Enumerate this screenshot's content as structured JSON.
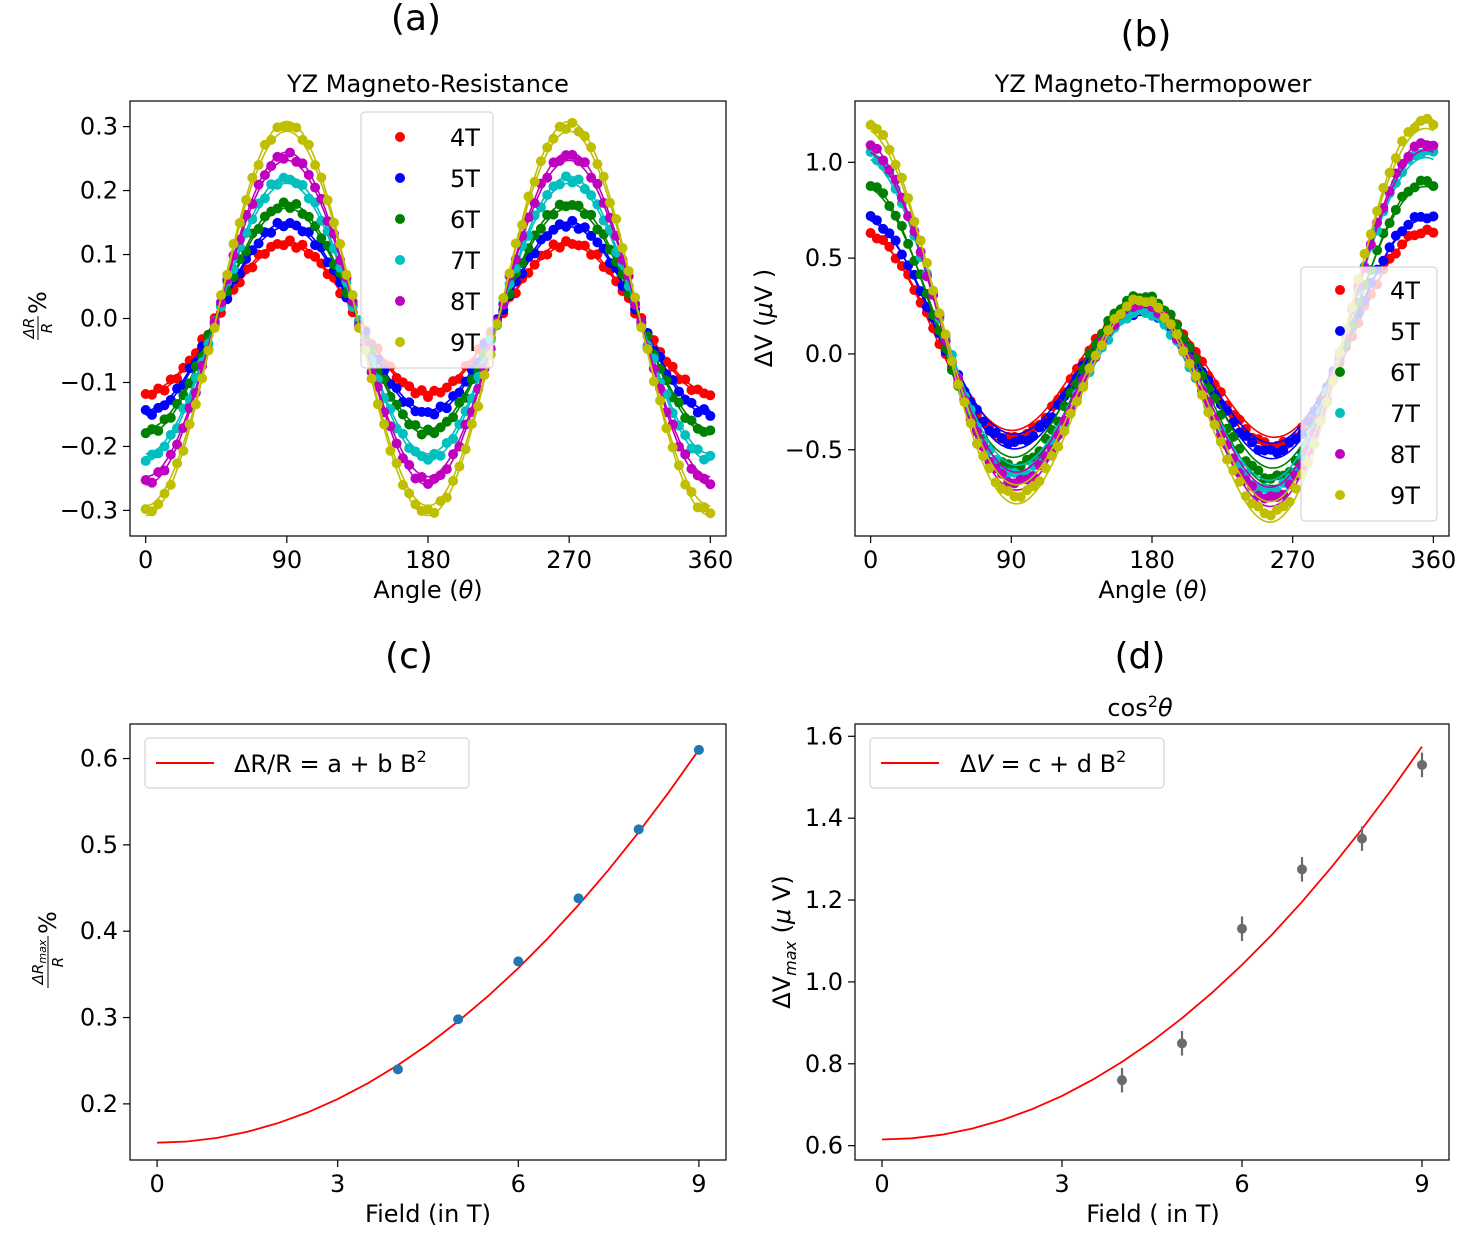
{
  "chart_data": [
    {
      "panel": "(a)",
      "type": "scatter",
      "title": "YZ Magneto-Resistance",
      "xlabel": "Angle (θ)",
      "ylabel": "ΔR/R %",
      "xlim": [
        -10,
        370
      ],
      "ylim": [
        -0.34,
        0.34
      ],
      "xticks": [
        0,
        90,
        180,
        270,
        360
      ],
      "xtick_labels": [
        "0",
        "90",
        "180",
        "270",
        "360"
      ],
      "yticks": [
        -0.3,
        -0.2,
        -0.1,
        0.0,
        0.1,
        0.2,
        0.3
      ],
      "ytick_labels": [
        "−0.3",
        "−0.2",
        "−0.1",
        "0.0",
        "0.1",
        "0.2",
        "0.3"
      ],
      "model": "-A·cos(2θ)",
      "legend_position": "top-center",
      "series": [
        {
          "name": "4T",
          "color": "#ff0000",
          "amplitude": 0.118
        },
        {
          "name": "5T",
          "color": "#0000ff",
          "amplitude": 0.148
        },
        {
          "name": "6T",
          "color": "#008000",
          "amplitude": 0.178
        },
        {
          "name": "7T",
          "color": "#00bfbf",
          "amplitude": 0.218
        },
        {
          "name": "8T",
          "color": "#bf00bf",
          "amplitude": 0.255
        },
        {
          "name": "9T",
          "color": "#bfbf00",
          "amplitude": 0.302
        }
      ]
    },
    {
      "panel": "(b)",
      "type": "scatter",
      "title": "YZ Magneto-Thermopower",
      "xlabel": "Angle (θ)",
      "ylabel": "ΔV (μV )",
      "xlim": [
        -10,
        370
      ],
      "ylim": [
        -0.95,
        1.32
      ],
      "xticks": [
        0,
        90,
        180,
        270,
        360
      ],
      "xtick_labels": [
        "0",
        "90",
        "180",
        "270",
        "360"
      ],
      "yticks": [
        -0.5,
        0.0,
        0.5,
        1.0
      ],
      "ytick_labels": [
        "−0.5",
        "0.0",
        "0.5",
        "1.0"
      ],
      "model": "c·cos(2θ+0.2) + s·cos(θ)",
      "legend_position": "center-right",
      "series": [
        {
          "name": "4T",
          "color": "#ff0000",
          "c": 0.45,
          "s": 0.19
        },
        {
          "name": "5T",
          "color": "#0000ff",
          "c": 0.47,
          "s": 0.25
        },
        {
          "name": "6T",
          "color": "#008000",
          "c": 0.6,
          "s": 0.3
        },
        {
          "name": "7T",
          "color": "#00bfbf",
          "c": 0.64,
          "s": 0.42
        },
        {
          "name": "8T",
          "color": "#bf00bf",
          "c": 0.68,
          "s": 0.42
        },
        {
          "name": "9T",
          "color": "#bfbf00",
          "c": 0.75,
          "s": 0.47
        }
      ]
    },
    {
      "panel": "(c)",
      "type": "scatter",
      "title": "",
      "xlabel": "Field (in T)",
      "ylabel": "ΔRmax/R %",
      "xlim": [
        -0.45,
        9.45
      ],
      "ylim": [
        0.135,
        0.64
      ],
      "xticks": [
        0,
        3,
        6,
        9
      ],
      "xtick_labels": [
        "0",
        "3",
        "6",
        "9"
      ],
      "yticks": [
        0.2,
        0.3,
        0.4,
        0.5,
        0.6
      ],
      "ytick_labels": [
        "0.2",
        "0.3",
        "0.4",
        "0.5",
        "0.6"
      ],
      "points": {
        "x": [
          4,
          5,
          6,
          7,
          8,
          9
        ],
        "y": [
          0.24,
          0.298,
          0.365,
          0.438,
          0.518,
          0.61
        ],
        "color": "#1f77b4"
      },
      "fit": {
        "label": "ΔR/R = a + b B²",
        "color": "#ff0000",
        "a": 0.155,
        "b": 0.00562
      },
      "legend_position": "top-left"
    },
    {
      "panel": "(d)",
      "type": "scatter",
      "title": "cos²θ",
      "xlabel": "Field ( in T)",
      "ylabel": "ΔVmax (μ V)",
      "xlim": [
        -0.45,
        9.45
      ],
      "ylim": [
        0.565,
        1.63
      ],
      "xticks": [
        0,
        3,
        6,
        9
      ],
      "xtick_labels": [
        "0",
        "3",
        "6",
        "9"
      ],
      "yticks": [
        0.6,
        0.8,
        1.0,
        1.2,
        1.4,
        1.6
      ],
      "ytick_labels": [
        "0.6",
        "0.8",
        "1.0",
        "1.2",
        "1.4",
        "1.6"
      ],
      "points": {
        "x": [
          4,
          5,
          6,
          7,
          8,
          9
        ],
        "y": [
          0.76,
          0.85,
          1.13,
          1.275,
          1.35,
          1.53
        ],
        "yerr": [
          0.03,
          0.03,
          0.03,
          0.03,
          0.03,
          0.03
        ],
        "color": "#6b6b6b"
      },
      "fit": {
        "label": "ΔV = c + d B²",
        "color": "#ff0000",
        "c": 0.615,
        "d": 0.01185
      },
      "legend_position": "top-left"
    }
  ]
}
